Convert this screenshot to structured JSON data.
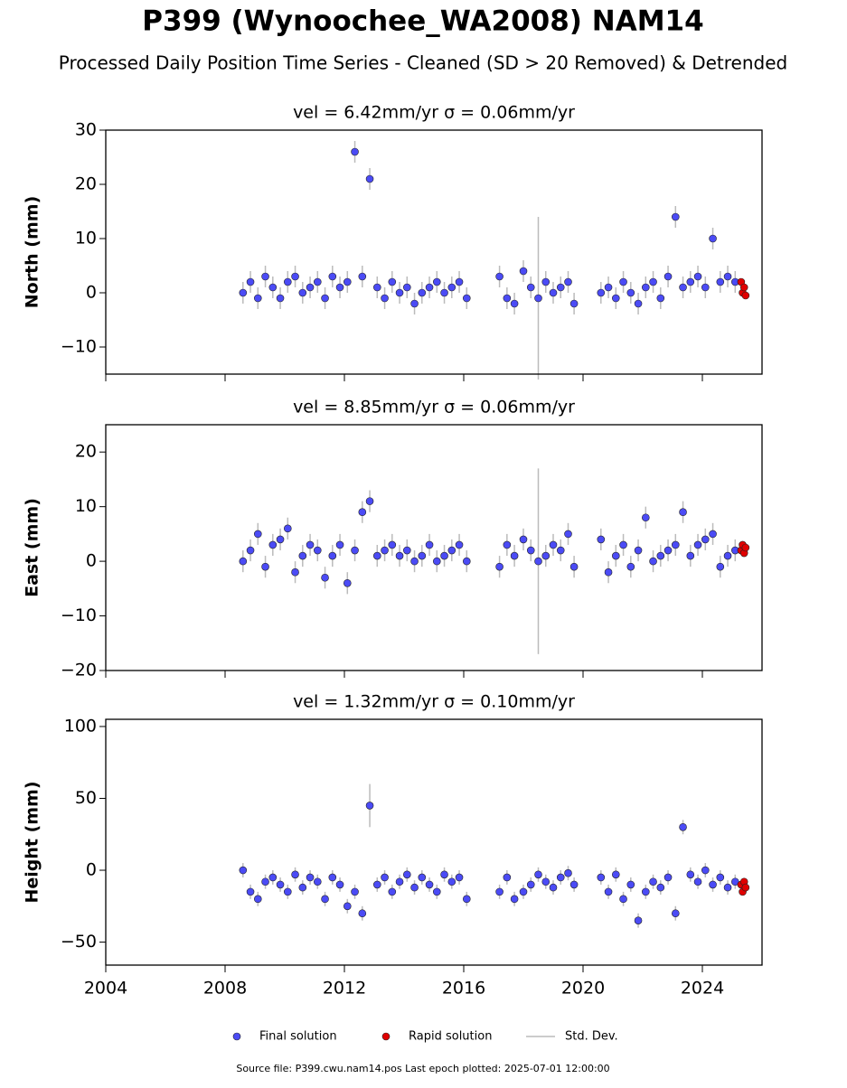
{
  "title": "P399 (Wynoochee_WA2008) NAM14",
  "subtitle": "Processed Daily Position Time Series - Cleaned (SD > 20 Removed) & Detrended",
  "footer": "Source file: P399.cwu.nam14.pos  Last epoch plotted: 2025-07-01 12:00:00",
  "chart_data": [
    {
      "type": "scatter",
      "title": "vel = 6.42mm/yr   σ = 0.06mm/yr",
      "y_label": "North (mm)",
      "xlim": [
        2004,
        2026
      ],
      "xticks": [
        2004,
        2008,
        2012,
        2016,
        2020,
        2024
      ],
      "xtick_labels": false,
      "ylim": [
        -15,
        30
      ],
      "yticks": [
        {
          "value": -10,
          "label": "−10"
        },
        0,
        10,
        20,
        30
      ],
      "series": [
        {
          "name": "Final solution",
          "color": "#4b4bf5",
          "x": [
            2008.6,
            2008.85,
            2009.1,
            2009.35,
            2009.6,
            2009.85,
            2010.1,
            2010.35,
            2010.6,
            2010.85,
            2011.1,
            2011.35,
            2011.6,
            2011.85,
            2012.1,
            2012.35,
            2012.6,
            2012.85,
            2013.1,
            2013.35,
            2013.6,
            2013.85,
            2014.1,
            2014.35,
            2014.6,
            2014.85,
            2015.1,
            2015.35,
            2015.6,
            2015.85,
            2016.1,
            2017.2,
            2017.45,
            2017.7,
            2018.0,
            2018.25,
            2018.5,
            2018.75,
            2019.0,
            2019.25,
            2019.5,
            2019.7,
            2020.6,
            2020.85,
            2021.1,
            2021.35,
            2021.6,
            2021.85,
            2022.1,
            2022.35,
            2022.6,
            2022.85,
            2023.1,
            2023.35,
            2023.6,
            2023.85,
            2024.1,
            2024.35,
            2024.6,
            2024.85,
            2025.1
          ],
          "values": [
            0,
            2,
            -1,
            3,
            1,
            -1,
            2,
            3,
            0,
            1,
            2,
            -1,
            3,
            1,
            2,
            26,
            3,
            21,
            1,
            -1,
            2,
            0,
            1,
            -2,
            0,
            1,
            2,
            0,
            1,
            2,
            -1,
            3,
            -1,
            -2,
            4,
            1,
            -1,
            2,
            0,
            1,
            2,
            -2,
            0,
            1,
            -1,
            2,
            0,
            -2,
            1,
            2,
            -1,
            3,
            14,
            1,
            2,
            3,
            1,
            10,
            2,
            3,
            2
          ]
        },
        {
          "name": "Rapid solution",
          "color": "#e00000",
          "x": [
            2025.3,
            2025.35,
            2025.4,
            2025.45
          ],
          "values": [
            2,
            0,
            1,
            -0.5
          ]
        },
        {
          "name": "Std. Dev.",
          "color": "#bbbbbb",
          "values": [
            2,
            2,
            2,
            2,
            2,
            2,
            2,
            2,
            2,
            2,
            2,
            2,
            2,
            2,
            2,
            2,
            2,
            2,
            2,
            2,
            2,
            2,
            2,
            2,
            2,
            2,
            2,
            2,
            2,
            2,
            2,
            2,
            2,
            2,
            2,
            2,
            15,
            2,
            2,
            2,
            2,
            2,
            2,
            2,
            2,
            2,
            2,
            2,
            2,
            2,
            2,
            2,
            2,
            2,
            2,
            2,
            2,
            2,
            2,
            2,
            2
          ]
        }
      ]
    },
    {
      "type": "scatter",
      "title": "vel = 8.85mm/yr   σ = 0.06mm/yr",
      "y_label": "East (mm)",
      "xlim": [
        2004,
        2026
      ],
      "xticks": [
        2004,
        2008,
        2012,
        2016,
        2020,
        2024
      ],
      "xtick_labels": false,
      "ylim": [
        -20,
        25
      ],
      "yticks": [
        {
          "value": -20,
          "label": "−20"
        },
        {
          "value": -10,
          "label": "−10"
        },
        0,
        10,
        20
      ],
      "series": [
        {
          "name": "Final solution",
          "color": "#4b4bf5",
          "x": [
            2008.6,
            2008.85,
            2009.1,
            2009.35,
            2009.6,
            2009.85,
            2010.1,
            2010.35,
            2010.6,
            2010.85,
            2011.1,
            2011.35,
            2011.6,
            2011.85,
            2012.1,
            2012.35,
            2012.6,
            2012.85,
            2013.1,
            2013.35,
            2013.6,
            2013.85,
            2014.1,
            2014.35,
            2014.6,
            2014.85,
            2015.1,
            2015.35,
            2015.6,
            2015.85,
            2016.1,
            2017.2,
            2017.45,
            2017.7,
            2018.0,
            2018.25,
            2018.5,
            2018.75,
            2019.0,
            2019.25,
            2019.5,
            2019.7,
            2020.6,
            2020.85,
            2021.1,
            2021.35,
            2021.6,
            2021.85,
            2022.1,
            2022.35,
            2022.6,
            2022.85,
            2023.1,
            2023.35,
            2023.6,
            2023.85,
            2024.1,
            2024.35,
            2024.6,
            2024.85,
            2025.1
          ],
          "values": [
            0,
            2,
            5,
            -1,
            3,
            4,
            6,
            -2,
            1,
            3,
            2,
            -3,
            1,
            3,
            -4,
            2,
            9,
            11,
            1,
            2,
            3,
            1,
            2,
            0,
            1,
            3,
            0,
            1,
            2,
            3,
            0,
            -1,
            3,
            1,
            4,
            2,
            0,
            1,
            3,
            2,
            5,
            -1,
            4,
            -2,
            1,
            3,
            -1,
            2,
            8,
            0,
            1,
            2,
            3,
            9,
            1,
            3,
            4,
            5,
            -1,
            1,
            2
          ]
        },
        {
          "name": "Rapid solution",
          "color": "#e00000",
          "x": [
            2025.3,
            2025.35,
            2025.4,
            2025.45
          ],
          "values": [
            2,
            3,
            1.5,
            2.5
          ]
        },
        {
          "name": "Std. Dev.",
          "color": "#bbbbbb",
          "values": [
            2,
            2,
            2,
            2,
            2,
            2,
            2,
            2,
            2,
            2,
            2,
            2,
            2,
            2,
            2,
            2,
            2,
            2,
            2,
            2,
            2,
            2,
            2,
            2,
            2,
            2,
            2,
            2,
            2,
            2,
            2,
            2,
            2,
            2,
            2,
            2,
            17,
            2,
            2,
            2,
            2,
            2,
            2,
            2,
            2,
            2,
            2,
            2,
            2,
            2,
            2,
            2,
            2,
            2,
            2,
            2,
            2,
            2,
            2,
            2,
            2
          ]
        }
      ]
    },
    {
      "type": "scatter",
      "title": "vel = 1.32mm/yr   σ = 0.10mm/yr",
      "y_label": "Height (mm)",
      "xlim": [
        2004,
        2026
      ],
      "xticks": [
        2004,
        2008,
        2012,
        2016,
        2020,
        2024
      ],
      "xtick_labels": true,
      "ylim": [
        -66,
        105
      ],
      "yticks": [
        {
          "value": -50,
          "label": "−50"
        },
        0,
        50,
        100
      ],
      "series": [
        {
          "name": "Final solution",
          "color": "#4b4bf5",
          "x": [
            2008.6,
            2008.85,
            2009.1,
            2009.35,
            2009.6,
            2009.85,
            2010.1,
            2010.35,
            2010.6,
            2010.85,
            2011.1,
            2011.35,
            2011.6,
            2011.85,
            2012.1,
            2012.35,
            2012.6,
            2012.85,
            2013.1,
            2013.35,
            2013.6,
            2013.85,
            2014.1,
            2014.35,
            2014.6,
            2014.85,
            2015.1,
            2015.35,
            2015.6,
            2015.85,
            2016.1,
            2017.2,
            2017.45,
            2017.7,
            2018.0,
            2018.25,
            2018.5,
            2018.75,
            2019.0,
            2019.25,
            2019.5,
            2019.7,
            2020.6,
            2020.85,
            2021.1,
            2021.35,
            2021.6,
            2021.85,
            2022.1,
            2022.35,
            2022.6,
            2022.85,
            2023.1,
            2023.35,
            2023.6,
            2023.85,
            2024.1,
            2024.35,
            2024.6,
            2024.85,
            2025.1
          ],
          "values": [
            0,
            -15,
            -20,
            -8,
            -5,
            -10,
            -15,
            -3,
            -12,
            -5,
            -8,
            -20,
            -5,
            -10,
            -25,
            -15,
            -30,
            45,
            -10,
            -5,
            -15,
            -8,
            -3,
            -12,
            -5,
            -10,
            -15,
            -3,
            -8,
            -5,
            -20,
            -15,
            -5,
            -20,
            -15,
            -10,
            -3,
            -8,
            -12,
            -5,
            -2,
            -10,
            -5,
            -15,
            -3,
            -20,
            -10,
            -35,
            -15,
            -8,
            -12,
            -5,
            -30,
            30,
            -3,
            -8,
            0,
            -10,
            -5,
            -12,
            -8
          ]
        },
        {
          "name": "Rapid solution",
          "color": "#e00000",
          "x": [
            2025.3,
            2025.35,
            2025.4,
            2025.45
          ],
          "values": [
            -10,
            -15,
            -8,
            -12
          ]
        },
        {
          "name": "Std. Dev.",
          "color": "#bbbbbb",
          "values": [
            5,
            5,
            5,
            5,
            5,
            5,
            5,
            5,
            5,
            5,
            5,
            5,
            5,
            5,
            5,
            5,
            5,
            15,
            5,
            5,
            5,
            5,
            5,
            5,
            5,
            5,
            5,
            5,
            5,
            5,
            5,
            5,
            5,
            5,
            5,
            5,
            5,
            5,
            5,
            5,
            5,
            5,
            5,
            5,
            5,
            5,
            5,
            5,
            5,
            5,
            5,
            5,
            5,
            5,
            5,
            5,
            5,
            5,
            5,
            5,
            5
          ]
        }
      ]
    }
  ]
}
